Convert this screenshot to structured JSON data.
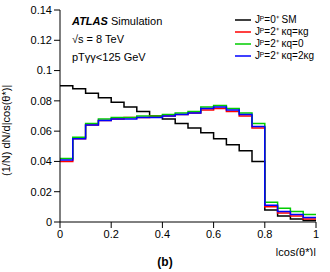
{
  "chart_data": {
    "type": "histogram",
    "title": "(b)",
    "xlabel": "|cos(θ*)|",
    "ylabel": "(1/N) dN/d|cos(θ*)|",
    "annotations": [
      "ATLAS Simulation",
      "√s = 8 TeV",
      "pTγγ<125 GeV"
    ],
    "bins": [
      0,
      0.05,
      0.1,
      0.15,
      0.2,
      0.25,
      0.3,
      0.35,
      0.4,
      0.45,
      0.5,
      0.55,
      0.6,
      0.65,
      0.7,
      0.75,
      0.8,
      0.85,
      0.9,
      0.95,
      1
    ],
    "series": [
      {
        "name": "Jᴾ=0⁺ SM",
        "color": "#000000",
        "values": [
          0.09,
          0.088,
          0.085,
          0.082,
          0.079,
          0.076,
          0.073,
          0.07,
          0.068,
          0.065,
          0.062,
          0.059,
          0.055,
          0.051,
          0.047,
          0.04,
          0.008,
          0.004,
          0.002,
          0.001
        ]
      },
      {
        "name": "Jᴾ=2⁺ κq=κg",
        "color": "#ff0000",
        "values": [
          0.04,
          0.055,
          0.064,
          0.067,
          0.068,
          0.069,
          0.069,
          0.07,
          0.07,
          0.071,
          0.072,
          0.074,
          0.075,
          0.073,
          0.07,
          0.062,
          0.01,
          0.006,
          0.004,
          0.002
        ]
      },
      {
        "name": "Jᴾ=2⁺ κq=0",
        "color": "#00cc00",
        "values": [
          0.042,
          0.056,
          0.065,
          0.068,
          0.069,
          0.069,
          0.07,
          0.07,
          0.071,
          0.072,
          0.073,
          0.076,
          0.077,
          0.075,
          0.072,
          0.065,
          0.013,
          0.009,
          0.007,
          0.005
        ]
      },
      {
        "name": "Jᴾ=2⁺ κq=2κg",
        "color": "#0000ff",
        "values": [
          0.041,
          0.055,
          0.064,
          0.067,
          0.068,
          0.068,
          0.069,
          0.069,
          0.07,
          0.071,
          0.072,
          0.075,
          0.076,
          0.074,
          0.071,
          0.063,
          0.011,
          0.007,
          0.005,
          0.003
        ]
      }
    ],
    "xlim": [
      0,
      1
    ],
    "xticks": [
      0,
      0.2,
      0.4,
      0.6,
      0.8,
      1
    ],
    "ylim": [
      0,
      0.14
    ],
    "yticks": [
      0,
      0.02,
      0.04,
      0.06,
      0.08,
      0.1,
      0.12,
      0.14
    ],
    "legend": "upper right",
    "grid": false
  }
}
